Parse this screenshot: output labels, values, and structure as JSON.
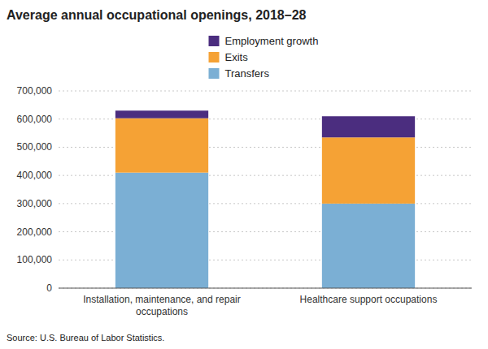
{
  "chart_data": {
    "type": "bar",
    "title": "Average annual occupational openings, 2018–28",
    "categories": [
      "Installation, maintenance, and repair\noccupations",
      "Healthcare support occupations"
    ],
    "series": [
      {
        "name": "Transfers",
        "color": "#7bafd4",
        "values": [
          410000,
          300000
        ]
      },
      {
        "name": "Exits",
        "color": "#f5a235",
        "values": [
          193000,
          235000
        ]
      },
      {
        "name": "Employment growth",
        "color": "#4b2d7f",
        "values": [
          27000,
          75000
        ]
      }
    ],
    "stacked": true,
    "ylim": [
      0,
      700000
    ],
    "yticks": [
      0,
      {
        "value": 100000,
        "label": "100,000"
      },
      {
        "value": 200000,
        "label": "200,000"
      },
      {
        "value": 300000,
        "label": "300,000"
      },
      {
        "value": 400000,
        "label": "400,000"
      },
      {
        "value": 500000,
        "label": "500,000"
      },
      {
        "value": 600000,
        "label": "600,000"
      },
      {
        "value": 700000,
        "label": "700,000"
      }
    ],
    "grid": true,
    "legend": "top",
    "annotations": [
      "Source: U.S. Bureau of Labor Statistics."
    ]
  }
}
